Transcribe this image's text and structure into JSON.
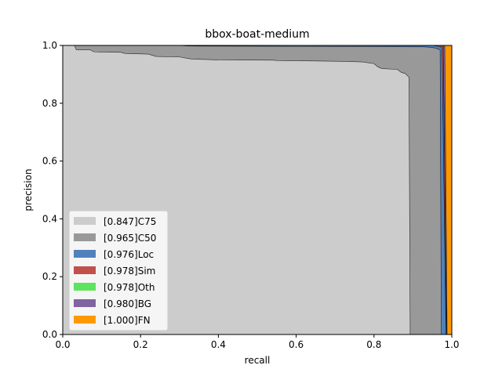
{
  "chart_data": {
    "type": "area",
    "title": "bbox-boat-medium",
    "xlabel": "recall",
    "ylabel": "precision",
    "xlim": [
      0,
      1
    ],
    "ylim": [
      0,
      1
    ],
    "xticks": [
      "0.0",
      "0.2",
      "0.4",
      "0.6",
      "0.8",
      "1.0"
    ],
    "yticks": [
      "0.0",
      "0.2",
      "0.4",
      "0.6",
      "0.8",
      "1.0"
    ],
    "grid": false,
    "legend_position": "lower-left",
    "series": [
      {
        "name": "[0.847]C75",
        "color": "#cccccc",
        "points": [
          [
            0,
            1.0
          ],
          [
            0.03,
            1.0
          ],
          [
            0.035,
            0.985
          ],
          [
            0.07,
            0.985
          ],
          [
            0.08,
            0.978
          ],
          [
            0.15,
            0.976
          ],
          [
            0.16,
            0.972
          ],
          [
            0.22,
            0.97
          ],
          [
            0.24,
            0.962
          ],
          [
            0.3,
            0.96
          ],
          [
            0.33,
            0.953
          ],
          [
            0.4,
            0.95
          ],
          [
            0.54,
            0.949
          ],
          [
            0.55,
            0.948
          ],
          [
            0.6,
            0.947
          ],
          [
            0.72,
            0.945
          ],
          [
            0.77,
            0.943
          ],
          [
            0.8,
            0.937
          ],
          [
            0.81,
            0.926
          ],
          [
            0.82,
            0.92
          ],
          [
            0.86,
            0.917
          ],
          [
            0.87,
            0.907
          ],
          [
            0.88,
            0.903
          ],
          [
            0.89,
            0.89
          ],
          [
            0.893,
            0.0
          ]
        ]
      },
      {
        "name": "[0.965]C50",
        "color": "#999999",
        "points": [
          [
            0,
            1.0
          ],
          [
            0.3,
            1.0
          ],
          [
            0.32,
            0.998
          ],
          [
            0.5,
            0.997
          ],
          [
            0.8,
            0.996
          ],
          [
            0.93,
            0.995
          ],
          [
            0.95,
            0.993
          ],
          [
            0.96,
            0.99
          ],
          [
            0.97,
            0.985
          ],
          [
            0.973,
            0.0
          ]
        ]
      },
      {
        "name": "[0.976]Loc",
        "color": "#4f81bd",
        "points": [
          [
            0,
            1.0
          ],
          [
            0.95,
            1.0
          ],
          [
            0.96,
            0.998
          ],
          [
            0.97,
            0.996
          ],
          [
            0.975,
            0.99
          ],
          [
            0.985,
            0.0
          ]
        ]
      },
      {
        "name": "[0.978]Sim",
        "color": "#c0504d",
        "points": [
          [
            0,
            1.0
          ],
          [
            0.97,
            1.0
          ],
          [
            0.978,
            0.995
          ],
          [
            0.986,
            0.0
          ]
        ]
      },
      {
        "name": "[0.978]Oth",
        "color": "#5ee35e",
        "points": [
          [
            0,
            1.0
          ],
          [
            0.978,
            1.0
          ],
          [
            0.987,
            0.0
          ]
        ]
      },
      {
        "name": "[0.980]BG",
        "color": "#8064a2",
        "points": [
          [
            0,
            1.0
          ],
          [
            0.98,
            1.0
          ],
          [
            0.982,
            0.997
          ],
          [
            0.988,
            0.0
          ]
        ]
      },
      {
        "name": "[1.000]FN",
        "color": "#ff9900",
        "points": [
          [
            0,
            1.0
          ],
          [
            1.0,
            1.0
          ],
          [
            1.0,
            0.0
          ]
        ]
      }
    ]
  }
}
